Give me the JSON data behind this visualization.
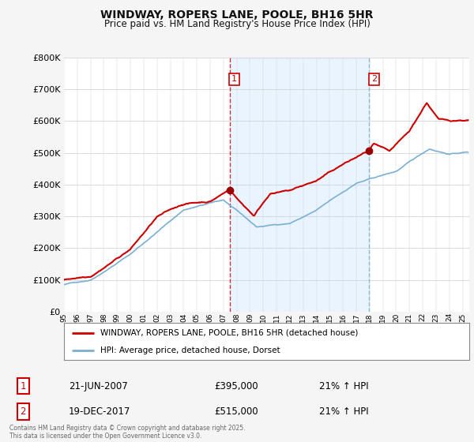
{
  "title": "WINDWAY, ROPERS LANE, POOLE, BH16 5HR",
  "subtitle": "Price paid vs. HM Land Registry's House Price Index (HPI)",
  "legend_line1": "WINDWAY, ROPERS LANE, POOLE, BH16 5HR (detached house)",
  "legend_line2": "HPI: Average price, detached house, Dorset",
  "annotation1_date": "21-JUN-2007",
  "annotation1_price": "£395,000",
  "annotation1_hpi": "21% ↑ HPI",
  "annotation1_year": 2007.47,
  "annotation2_date": "19-DEC-2017",
  "annotation2_price": "£515,000",
  "annotation2_hpi": "21% ↑ HPI",
  "annotation2_year": 2017.96,
  "red_color": "#cc0000",
  "blue_color": "#7aafd4",
  "blue_fill_color": "#ddeeff",
  "dot_color": "#990000",
  "background_color": "#f5f5f5",
  "plot_bg_color": "#ffffff",
  "footnote": "Contains HM Land Registry data © Crown copyright and database right 2025.\nThis data is licensed under the Open Government Licence v3.0.",
  "ylim_min": 0,
  "ylim_max": 800000,
  "xmin": 1995,
  "xmax": 2025.5
}
